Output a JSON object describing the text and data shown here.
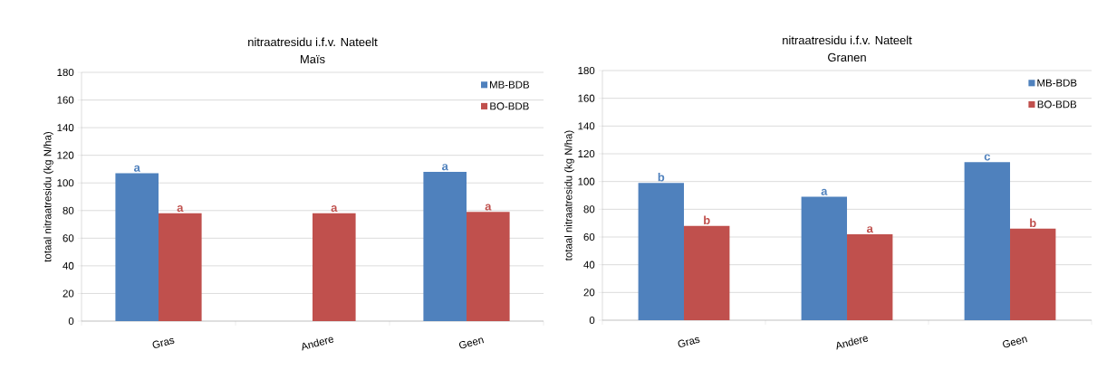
{
  "chart_data": [
    {
      "type": "bar",
      "title": "nitraatresidu i.f.v. Nateelt",
      "subtitle": "Maïs",
      "ylabel": "totaal nitraatresidu (kg N/ha)",
      "categories": [
        "Gras",
        "Andere",
        "Geen"
      ],
      "series": [
        {
          "name": "MB-BDB",
          "color": "#4f81bd",
          "values": [
            107,
            null,
            108
          ],
          "value_labels": [
            "a",
            null,
            "a"
          ]
        },
        {
          "name": "BO-BDB",
          "color": "#c0504d",
          "values": [
            78,
            78,
            79
          ],
          "value_labels": [
            "a",
            "a",
            "a"
          ]
        }
      ],
      "ylim": [
        0,
        180
      ],
      "yticks": [
        0,
        20,
        40,
        60,
        80,
        100,
        120,
        140,
        160,
        180
      ],
      "grid": "y",
      "legend": "top right"
    },
    {
      "type": "bar",
      "title": "nitraatresidu i.f.v. Nateelt",
      "subtitle": "Granen",
      "ylabel": "totaal nitraatresidu (kg N/ha)",
      "categories": [
        "Gras",
        "Andere",
        "Geen"
      ],
      "series": [
        {
          "name": "MB-BDB",
          "color": "#4f81bd",
          "values": [
            99,
            89,
            114
          ],
          "value_labels": [
            "b",
            "a",
            "c"
          ]
        },
        {
          "name": "BO-BDB",
          "color": "#c0504d",
          "values": [
            68,
            62,
            66
          ],
          "value_labels": [
            "b",
            "a",
            "b"
          ]
        }
      ],
      "ylim": [
        0,
        180
      ],
      "yticks": [
        0,
        20,
        40,
        60,
        80,
        100,
        120,
        140,
        160,
        180
      ],
      "grid": "y",
      "legend": "top right"
    }
  ]
}
